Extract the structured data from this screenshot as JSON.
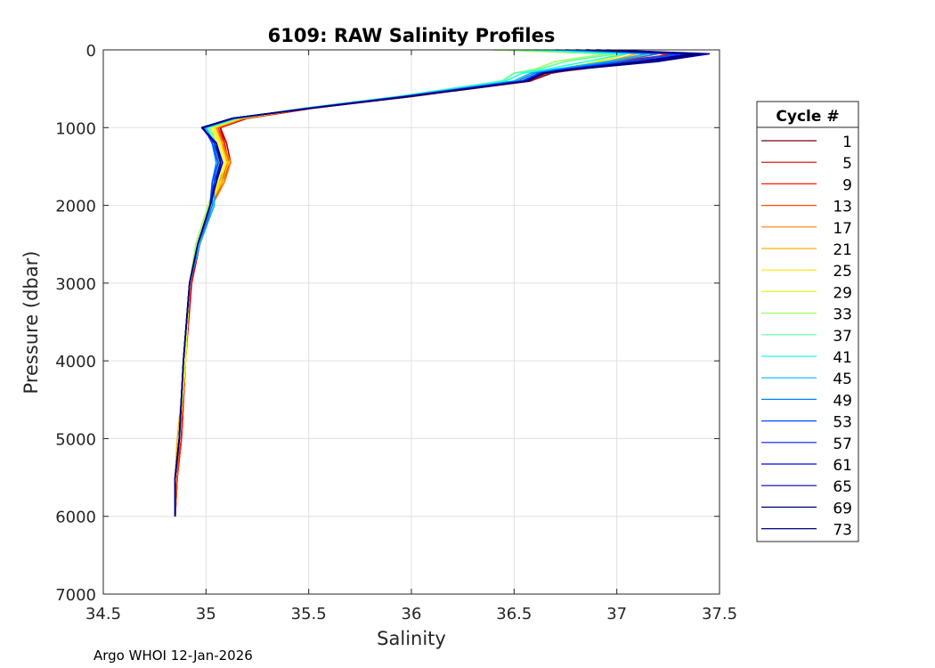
{
  "footer": "Argo WHOI 12-Jan-2026",
  "chart_data": {
    "type": "line",
    "title": "6109: RAW Salinity Profiles",
    "xlabel": "Salinity",
    "ylabel": "Pressure (dbar)",
    "xlim": [
      34.5,
      37.5
    ],
    "ylim": [
      0,
      7000
    ],
    "y_reversed": true,
    "grid": true,
    "xticks": [
      34.5,
      35,
      35.5,
      36,
      36.5,
      37,
      37.5
    ],
    "xtick_labels": [
      "34.5",
      "35",
      "35.5",
      "36",
      "36.5",
      "37",
      "37.5"
    ],
    "yticks": [
      0,
      1000,
      2000,
      3000,
      4000,
      5000,
      6000,
      7000
    ],
    "ytick_labels": [
      "0",
      "1000",
      "2000",
      "3000",
      "4000",
      "5000",
      "6000",
      "7000"
    ],
    "legend": {
      "title": "Cycle #",
      "placement": "outside-right",
      "entries": [
        "1",
        "5",
        "9",
        "13",
        "17",
        "21",
        "25",
        "29",
        "33",
        "37",
        "41",
        "45",
        "49",
        "53",
        "57",
        "61",
        "65",
        "69",
        "73"
      ],
      "colors": [
        "#7f0000",
        "#cc0000",
        "#ff1a00",
        "#ff4d00",
        "#ff8000",
        "#ffb300",
        "#ffe600",
        "#e6ff1a",
        "#9dff62",
        "#62ff9d",
        "#1affe6",
        "#00b3ff",
        "#0080ff",
        "#004dff",
        "#0019ff",
        "#0000e6",
        "#0000b3",
        "#000080",
        "#00007a"
      ]
    },
    "series": [
      {
        "name": "1",
        "x": [
          36.8,
          37.28,
          37.05,
          36.8,
          36.68,
          36.58,
          36.0,
          35.52,
          35.2,
          35.07,
          35.09,
          35.11,
          35.07,
          35.02,
          34.96,
          34.92,
          34.9,
          34.88,
          34.86,
          34.85
        ],
        "y": [
          0,
          50,
          150,
          250,
          300,
          400,
          600,
          750,
          880,
          1000,
          1200,
          1450,
          1700,
          2000,
          2500,
          3000,
          4000,
          5000,
          5500,
          6000
        ]
      },
      {
        "name": "5",
        "x": [
          36.75,
          37.3,
          37.0,
          36.78,
          36.66,
          36.58,
          35.98,
          35.52,
          35.2,
          35.07,
          35.1,
          35.12,
          35.08,
          35.03,
          34.97,
          34.93,
          34.9,
          34.88,
          34.86,
          34.85
        ],
        "y": [
          0,
          50,
          150,
          250,
          300,
          400,
          600,
          750,
          880,
          1000,
          1200,
          1450,
          1700,
          2000,
          2500,
          3000,
          4000,
          5000,
          5500,
          6000
        ]
      },
      {
        "name": "9",
        "x": [
          36.85,
          37.25,
          37.1,
          36.82,
          36.66,
          36.57,
          35.99,
          35.51,
          35.19,
          35.06,
          35.09,
          35.1,
          35.07,
          35.02,
          34.96,
          34.92,
          34.9,
          34.88,
          34.86,
          34.85
        ],
        "y": [
          0,
          50,
          150,
          250,
          300,
          400,
          600,
          750,
          880,
          1000,
          1200,
          1450,
          1700,
          2000,
          2500,
          3000,
          4000,
          5000,
          5500,
          6000
        ]
      },
      {
        "name": "13",
        "x": [
          36.8,
          37.2,
          37.0,
          36.8,
          36.66,
          36.56,
          35.97,
          35.5,
          35.19,
          35.06,
          35.08,
          35.11,
          35.06,
          35.02,
          34.96,
          34.92,
          34.9,
          34.87,
          34.86,
          34.85
        ],
        "y": [
          0,
          50,
          150,
          250,
          300,
          400,
          600,
          750,
          880,
          1000,
          1200,
          1450,
          1700,
          2000,
          2500,
          3000,
          4000,
          5000,
          5500,
          6000
        ]
      },
      {
        "name": "17",
        "x": [
          36.7,
          37.15,
          36.98,
          36.78,
          36.64,
          36.55,
          35.97,
          35.5,
          35.18,
          35.05,
          35.08,
          35.12,
          35.09,
          35.03,
          34.96,
          34.92,
          34.9,
          34.87,
          34.85,
          34.85
        ],
        "y": [
          0,
          50,
          150,
          250,
          300,
          400,
          600,
          750,
          880,
          1000,
          1200,
          1450,
          1700,
          2000,
          2500,
          3000,
          4000,
          5000,
          5500,
          6000
        ]
      },
      {
        "name": "21",
        "x": [
          36.65,
          37.1,
          36.95,
          36.76,
          36.62,
          36.54,
          35.96,
          35.5,
          35.17,
          35.04,
          35.07,
          35.11,
          35.08,
          35.02,
          34.96,
          34.92,
          34.9,
          34.86,
          34.85,
          34.85
        ],
        "y": [
          0,
          50,
          150,
          250,
          300,
          400,
          600,
          750,
          880,
          1000,
          1200,
          1450,
          1700,
          2000,
          2500,
          3000,
          4000,
          5000,
          5500,
          6000
        ]
      },
      {
        "name": "25",
        "x": [
          36.6,
          37.05,
          36.92,
          36.74,
          36.6,
          36.52,
          35.95,
          35.49,
          35.17,
          35.04,
          35.07,
          35.1,
          35.07,
          35.02,
          34.96,
          34.92,
          34.9,
          34.87,
          34.85,
          34.85
        ],
        "y": [
          0,
          50,
          150,
          250,
          300,
          400,
          600,
          750,
          880,
          1000,
          1200,
          1450,
          1700,
          2000,
          2500,
          3000,
          4000,
          5000,
          5500,
          6000
        ]
      },
      {
        "name": "29",
        "x": [
          36.55,
          37.0,
          36.9,
          36.72,
          36.58,
          36.5,
          35.95,
          35.49,
          35.16,
          35.03,
          35.06,
          35.09,
          35.06,
          35.02,
          34.96,
          34.92,
          34.9,
          34.87,
          34.85,
          34.85
        ],
        "y": [
          0,
          50,
          150,
          250,
          300,
          400,
          600,
          750,
          880,
          1000,
          1200,
          1450,
          1700,
          2000,
          2500,
          3000,
          4000,
          5000,
          5500,
          6000
        ]
      },
      {
        "name": "33",
        "x": [
          36.4,
          36.95,
          36.7,
          36.6,
          36.5,
          36.45,
          35.94,
          35.48,
          35.16,
          35.02,
          35.05,
          35.07,
          35.05,
          35.01,
          34.95,
          34.92,
          34.89,
          34.87,
          34.85,
          34.85
        ],
        "y": [
          0,
          50,
          150,
          250,
          300,
          400,
          600,
          750,
          880,
          1000,
          1200,
          1450,
          1700,
          2000,
          2500,
          3000,
          4000,
          5000,
          5500,
          6000
        ]
      },
      {
        "name": "37",
        "x": [
          36.5,
          37.0,
          36.75,
          36.62,
          36.5,
          36.44,
          35.93,
          35.48,
          35.15,
          35.01,
          35.05,
          35.06,
          35.05,
          35.02,
          34.96,
          34.92,
          34.89,
          34.87,
          34.85,
          34.85
        ],
        "y": [
          0,
          50,
          150,
          250,
          300,
          400,
          600,
          750,
          880,
          1000,
          1200,
          1450,
          1700,
          2000,
          2500,
          3000,
          4000,
          5000,
          5500,
          6000
        ]
      },
      {
        "name": "41",
        "x": [
          36.6,
          37.05,
          36.85,
          36.66,
          36.54,
          36.46,
          35.94,
          35.48,
          35.15,
          35.0,
          35.04,
          35.06,
          35.04,
          35.03,
          34.96,
          34.92,
          34.89,
          34.87,
          34.85,
          34.85
        ],
        "y": [
          0,
          50,
          150,
          250,
          300,
          400,
          600,
          750,
          880,
          1000,
          1200,
          1450,
          1700,
          2000,
          2500,
          3000,
          4000,
          5000,
          5500,
          6000
        ]
      },
      {
        "name": "45",
        "x": [
          36.7,
          37.15,
          36.95,
          36.7,
          36.58,
          36.5,
          35.95,
          35.49,
          35.14,
          35.0,
          35.04,
          35.05,
          35.04,
          35.04,
          34.97,
          34.92,
          34.89,
          34.87,
          34.85,
          34.85
        ],
        "y": [
          0,
          50,
          150,
          250,
          300,
          400,
          600,
          750,
          880,
          1000,
          1200,
          1450,
          1700,
          2000,
          2500,
          3000,
          4000,
          5000,
          5500,
          6000
        ]
      },
      {
        "name": "49",
        "x": [
          36.75,
          37.2,
          37.0,
          36.72,
          36.6,
          36.52,
          35.96,
          35.49,
          35.14,
          34.99,
          35.03,
          35.05,
          35.03,
          35.03,
          34.96,
          34.92,
          34.89,
          34.87,
          34.85,
          34.85
        ],
        "y": [
          0,
          50,
          150,
          250,
          300,
          400,
          600,
          750,
          880,
          1000,
          1200,
          1450,
          1700,
          2000,
          2500,
          3000,
          4000,
          5000,
          5500,
          6000
        ]
      },
      {
        "name": "53",
        "x": [
          36.8,
          37.3,
          37.05,
          36.74,
          36.62,
          36.54,
          35.97,
          35.5,
          35.13,
          34.99,
          35.03,
          35.06,
          35.03,
          35.02,
          34.96,
          34.92,
          34.89,
          34.87,
          34.85,
          34.85
        ],
        "y": [
          0,
          50,
          150,
          250,
          300,
          400,
          600,
          750,
          880,
          1000,
          1200,
          1450,
          1700,
          2000,
          2500,
          3000,
          4000,
          5000,
          5500,
          6000
        ]
      },
      {
        "name": "57",
        "x": [
          36.85,
          37.35,
          37.1,
          36.76,
          36.63,
          36.55,
          35.97,
          35.5,
          35.13,
          34.98,
          35.04,
          35.07,
          35.04,
          35.02,
          34.96,
          34.92,
          34.89,
          34.87,
          34.85,
          34.85
        ],
        "y": [
          0,
          50,
          150,
          250,
          300,
          400,
          600,
          750,
          880,
          1000,
          1200,
          1450,
          1700,
          2000,
          2500,
          3000,
          4000,
          5000,
          5500,
          6000
        ]
      },
      {
        "name": "61",
        "x": [
          36.9,
          37.4,
          37.15,
          36.78,
          36.64,
          36.56,
          35.98,
          35.51,
          35.13,
          34.98,
          35.05,
          35.08,
          35.05,
          35.02,
          34.96,
          34.92,
          34.89,
          34.87,
          34.85,
          34.85
        ],
        "y": [
          0,
          50,
          150,
          250,
          300,
          400,
          600,
          750,
          880,
          1000,
          1200,
          1450,
          1700,
          2000,
          2500,
          3000,
          4000,
          5000,
          5500,
          6000
        ]
      },
      {
        "name": "65",
        "x": [
          36.95,
          37.45,
          37.2,
          36.8,
          36.65,
          36.56,
          35.98,
          35.51,
          35.13,
          34.98,
          35.05,
          35.08,
          35.05,
          35.02,
          34.96,
          34.92,
          34.89,
          34.87,
          34.85,
          34.85
        ],
        "y": [
          0,
          50,
          150,
          250,
          300,
          400,
          600,
          750,
          880,
          1000,
          1200,
          1450,
          1700,
          2000,
          2500,
          3000,
          4000,
          5000,
          5500,
          6000
        ]
      },
      {
        "name": "69",
        "x": [
          36.9,
          37.42,
          37.18,
          36.79,
          36.65,
          36.57,
          35.98,
          35.51,
          35.13,
          34.98,
          35.05,
          35.07,
          35.05,
          35.02,
          34.96,
          34.92,
          34.89,
          34.87,
          34.85,
          34.85
        ],
        "y": [
          0,
          50,
          150,
          250,
          300,
          400,
          600,
          750,
          880,
          1000,
          1200,
          1450,
          1700,
          2000,
          2500,
          3000,
          4000,
          5000,
          5500,
          6000
        ]
      },
      {
        "name": "73",
        "x": [
          36.85,
          37.38,
          37.12,
          36.78,
          36.64,
          36.57,
          35.98,
          35.51,
          35.13,
          34.98,
          35.05,
          35.07,
          35.05,
          35.02,
          34.96,
          34.92,
          34.89,
          34.87,
          34.85,
          34.85
        ],
        "y": [
          0,
          50,
          150,
          250,
          300,
          400,
          600,
          750,
          880,
          1000,
          1200,
          1450,
          1700,
          2000,
          2500,
          3000,
          4000,
          5000,
          5500,
          6000
        ]
      }
    ]
  }
}
